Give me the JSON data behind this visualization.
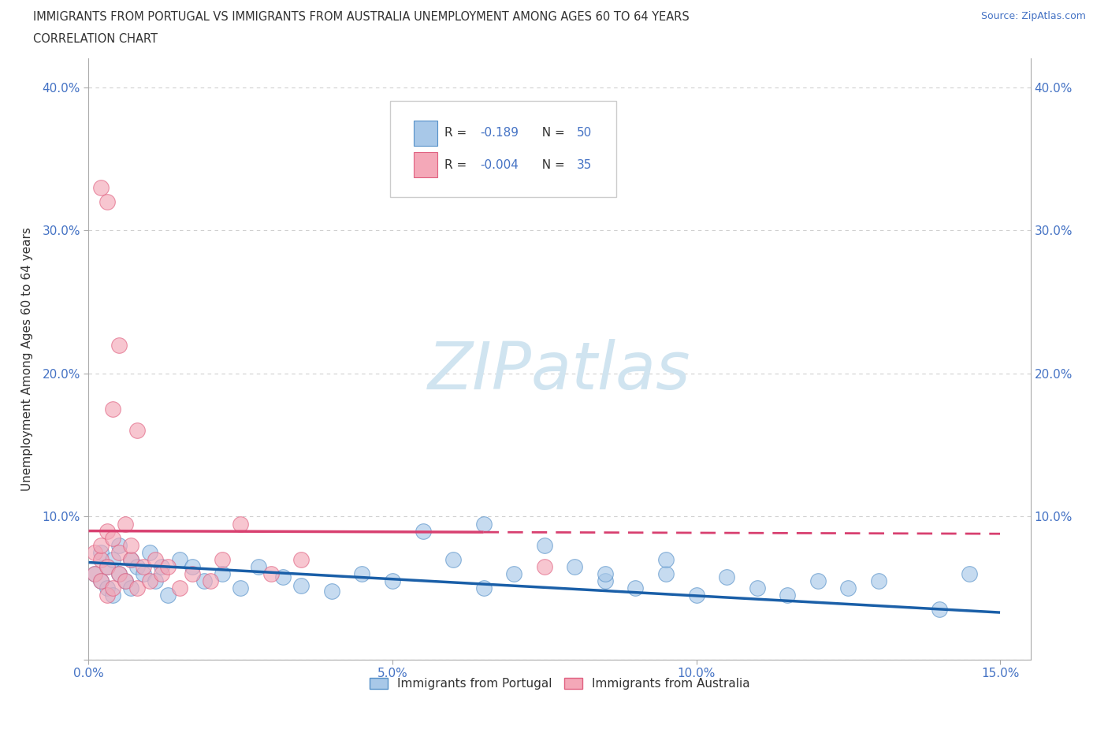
{
  "title_line1": "IMMIGRANTS FROM PORTUGAL VS IMMIGRANTS FROM AUSTRALIA UNEMPLOYMENT AMONG AGES 60 TO 64 YEARS",
  "title_line2": "CORRELATION CHART",
  "source_text": "Source: ZipAtlas.com",
  "ylabel": "Unemployment Among Ages 60 to 64 years",
  "xlim": [
    0.0,
    0.155
  ],
  "ylim": [
    0.0,
    0.42
  ],
  "xticks": [
    0.0,
    0.05,
    0.1,
    0.15
  ],
  "yticks": [
    0.0,
    0.1,
    0.2,
    0.3,
    0.4
  ],
  "xtick_labels": [
    "0.0%",
    "5.0%",
    "10.0%",
    "15.0%"
  ],
  "ytick_labels": [
    "",
    "10.0%",
    "20.0%",
    "30.0%",
    "40.0%"
  ],
  "portugal_color": "#a8c8e8",
  "australia_color": "#f4a8b8",
  "portugal_edge": "#5590c8",
  "australia_edge": "#e06080",
  "trend_portugal_color": "#1a5fa8",
  "trend_australia_color": "#d84070",
  "R_portugal": -0.189,
  "N_portugal": 50,
  "R_australia": -0.004,
  "N_australia": 35,
  "watermark": "ZIPatlas",
  "legend_label_portugal": "Immigrants from Portugal",
  "legend_label_australia": "Immigrants from Australia",
  "portugal_x": [
    0.001,
    0.002,
    0.002,
    0.003,
    0.003,
    0.004,
    0.004,
    0.005,
    0.005,
    0.006,
    0.007,
    0.007,
    0.008,
    0.009,
    0.01,
    0.011,
    0.012,
    0.013,
    0.015,
    0.017,
    0.019,
    0.022,
    0.025,
    0.028,
    0.032,
    0.035,
    0.04,
    0.045,
    0.05,
    0.055,
    0.06,
    0.065,
    0.07,
    0.08,
    0.085,
    0.09,
    0.095,
    0.1,
    0.105,
    0.11,
    0.115,
    0.12,
    0.125,
    0.065,
    0.075,
    0.085,
    0.095,
    0.13,
    0.14,
    0.145
  ],
  "portugal_y": [
    0.06,
    0.055,
    0.075,
    0.05,
    0.065,
    0.07,
    0.045,
    0.06,
    0.08,
    0.055,
    0.07,
    0.05,
    0.065,
    0.06,
    0.075,
    0.055,
    0.065,
    0.045,
    0.07,
    0.065,
    0.055,
    0.06,
    0.05,
    0.065,
    0.058,
    0.052,
    0.048,
    0.06,
    0.055,
    0.09,
    0.07,
    0.05,
    0.06,
    0.065,
    0.055,
    0.05,
    0.06,
    0.045,
    0.058,
    0.05,
    0.045,
    0.055,
    0.05,
    0.095,
    0.08,
    0.06,
    0.07,
    0.055,
    0.035,
    0.06
  ],
  "australia_x": [
    0.001,
    0.001,
    0.002,
    0.002,
    0.002,
    0.003,
    0.003,
    0.003,
    0.004,
    0.004,
    0.005,
    0.005,
    0.006,
    0.006,
    0.007,
    0.007,
    0.008,
    0.009,
    0.01,
    0.011,
    0.012,
    0.013,
    0.015,
    0.017,
    0.02,
    0.022,
    0.025,
    0.03,
    0.035,
    0.002,
    0.003,
    0.004,
    0.005,
    0.075,
    0.008
  ],
  "australia_y": [
    0.06,
    0.075,
    0.055,
    0.07,
    0.08,
    0.045,
    0.065,
    0.09,
    0.05,
    0.085,
    0.075,
    0.06,
    0.095,
    0.055,
    0.07,
    0.08,
    0.05,
    0.065,
    0.055,
    0.07,
    0.06,
    0.065,
    0.05,
    0.06,
    0.055,
    0.07,
    0.095,
    0.06,
    0.07,
    0.33,
    0.32,
    0.175,
    0.22,
    0.065,
    0.16
  ],
  "trend_port_x0": 0.0,
  "trend_port_y0": 0.068,
  "trend_port_x1": 0.15,
  "trend_port_y1": 0.033,
  "trend_aus_x0": 0.0,
  "trend_aus_y0": 0.09,
  "trend_aus_x1": 0.15,
  "trend_aus_y1": 0.088,
  "trend_aus_solid_end": 0.065,
  "grid_color": "#d0d0d0",
  "spine_color": "#aaaaaa",
  "tick_color": "#4472c4",
  "title_color": "#333333",
  "watermark_color": "#d0e4f0"
}
